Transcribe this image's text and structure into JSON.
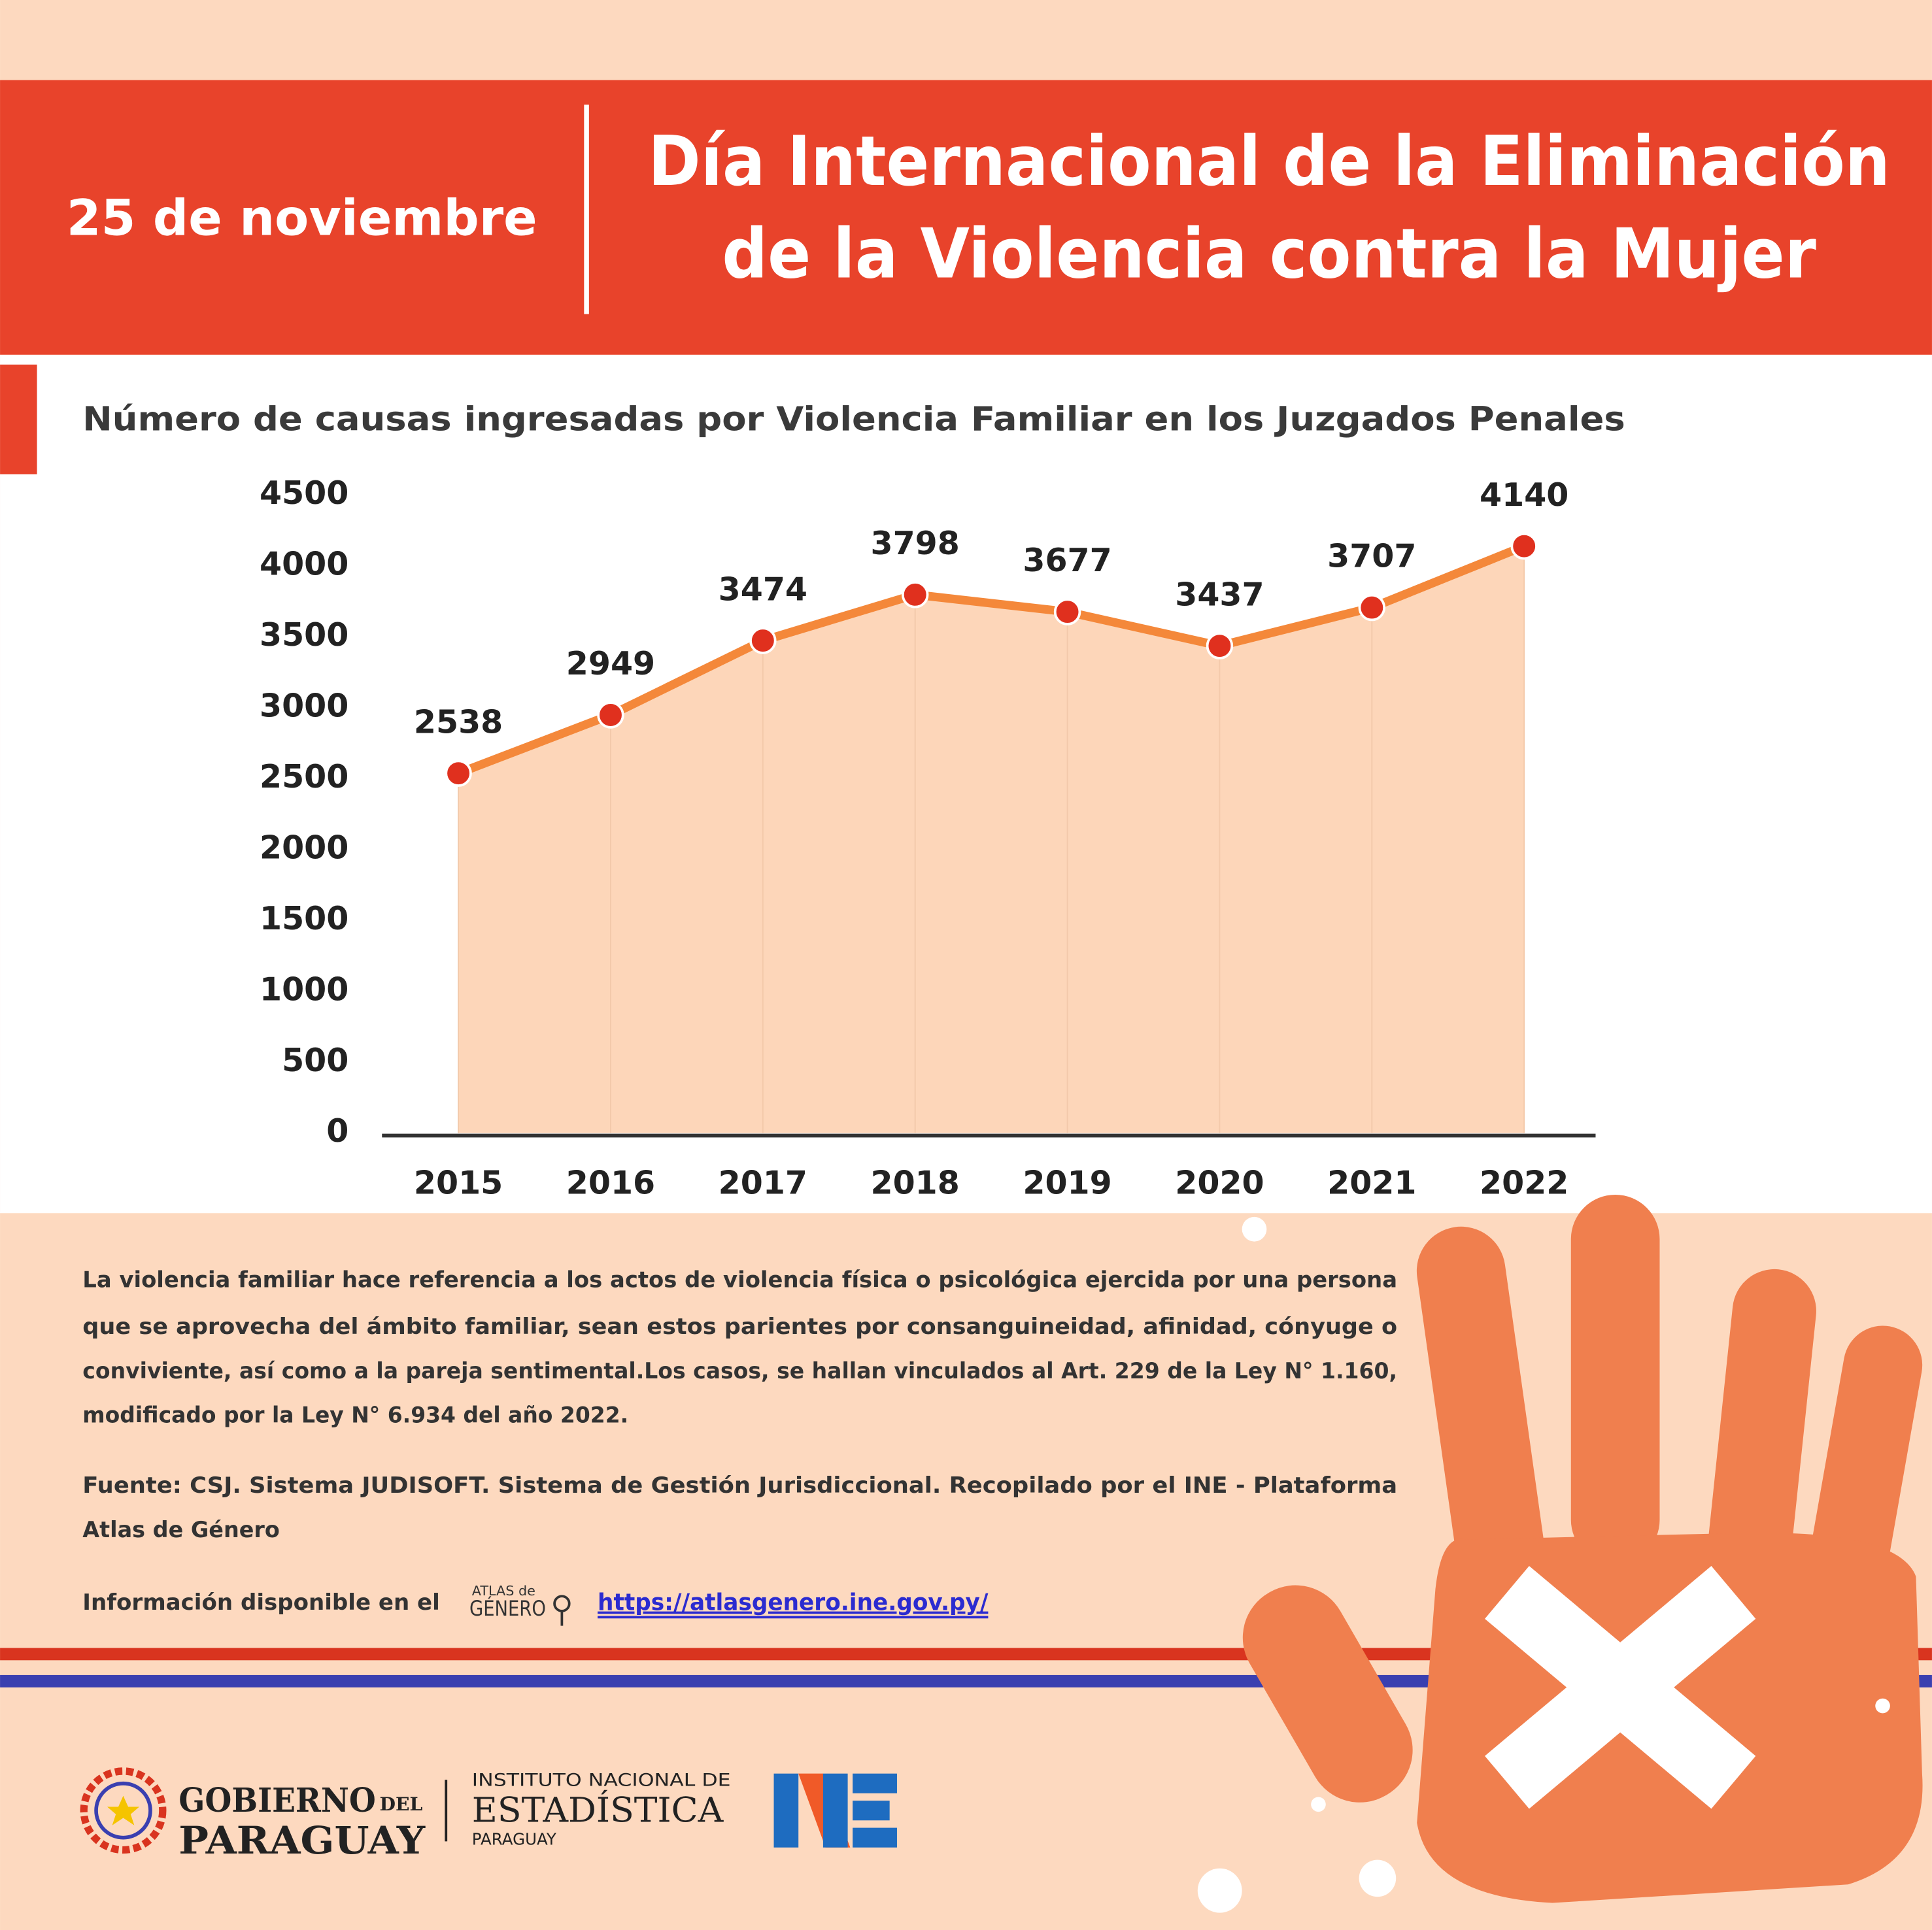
{
  "header": {
    "date": "25 de noviembre",
    "title_lines": [
      "Día Internacional de la Eliminación",
      "de la Violencia contra la Mujer"
    ]
  },
  "chart_data": {
    "type": "line",
    "title": "Número de causas ingresadas por Violencia Familiar en los Juzgados Penales",
    "categories": [
      "2015",
      "2016",
      "2017",
      "2018",
      "2019",
      "2020",
      "2021",
      "2022"
    ],
    "values": [
      2538,
      2949,
      3474,
      3798,
      3677,
      3437,
      3707,
      4140
    ],
    "ylim": [
      0,
      4500
    ],
    "yticks": [
      0,
      500,
      1000,
      1500,
      2000,
      2500,
      3000,
      3500,
      4000,
      4500
    ],
    "line_color": "#f4883a",
    "marker_color": "#e0301e",
    "area_color": "#fdd6b9"
  },
  "body": {
    "paragraph": [
      "La violencia familiar hace referencia a los actos de violencia física o psicológica ejercida por una persona",
      "que se aprovecha del ámbito familiar, sean estos parientes por consanguineidad, afinidad, cónyuge o",
      "conviviente, así como a la pareja sentimental.Los casos, se hallan vinculados al Art. 229 de la Ley N° 1.160,",
      "modificado por la Ley N° 6.934 del año 2022."
    ],
    "source": [
      "Fuente: CSJ. Sistema JUDISOFT. Sistema de Gestión Jurisdiccional. Recopilado por el INE - Plataforma",
      "Atlas de Género"
    ],
    "info_prefix": "Información disponible en el",
    "logo_text": [
      "ATLAS de",
      "GÉNERO"
    ],
    "link": "https://atlasgenero.ine.gov.py/"
  },
  "footer": {
    "gov": [
      "GOBIERNO",
      "DEL",
      "PARAGUAY"
    ],
    "ine": [
      "INSTITUTO NACIONAL DE",
      "ESTADÍSTICA",
      "PARAGUAY"
    ]
  }
}
